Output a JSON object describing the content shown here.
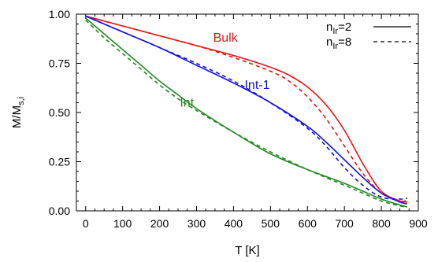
{
  "chart_data": {
    "type": "line",
    "xlabel": "T [K]",
    "ylabel": "M/M",
    "ylabel_sub": "s,i",
    "xlim": [
      -25,
      900
    ],
    "ylim": [
      0,
      1.0
    ],
    "x_ticks": [
      0,
      100,
      200,
      300,
      400,
      500,
      600,
      700,
      800,
      900
    ],
    "x_tick_labels": [
      "0",
      "100",
      "200",
      "300",
      "400",
      "500",
      "600",
      "700",
      "800",
      "900"
    ],
    "y_ticks": [
      0,
      0.25,
      0.5,
      0.75,
      1.0
    ],
    "y_tick_labels": [
      "0.00",
      "0.25",
      "0.50",
      "0.75",
      "1.00"
    ],
    "grid": false,
    "legend": {
      "placement": "top-right",
      "entries": [
        {
          "prefix": "n",
          "sub": "Ir",
          "suffix": "=2",
          "style": "solid"
        },
        {
          "prefix": "n",
          "sub": "Ir",
          "suffix": "=8",
          "style": "dashed"
        }
      ]
    },
    "series": [
      {
        "name": "Bulk",
        "color": "#ee1111",
        "style": "solid",
        "x": [
          0,
          100,
          200,
          300,
          400,
          500,
          550,
          600,
          650,
          700,
          750,
          800,
          850,
          870
        ],
        "y": [
          0.99,
          0.94,
          0.89,
          0.84,
          0.79,
          0.73,
          0.69,
          0.63,
          0.54,
          0.41,
          0.24,
          0.1,
          0.05,
          0.045
        ]
      },
      {
        "name": "Bulk n=8",
        "color": "#ee1111",
        "style": "dashed",
        "x": [
          0,
          100,
          200,
          300,
          400,
          500,
          550,
          600,
          650,
          700,
          750,
          800,
          850,
          870
        ],
        "y": [
          0.99,
          0.94,
          0.89,
          0.84,
          0.78,
          0.71,
          0.66,
          0.58,
          0.47,
          0.33,
          0.19,
          0.09,
          0.05,
          0.055
        ]
      },
      {
        "name": "Int-1",
        "color": "#1111dd",
        "style": "solid",
        "x": [
          0,
          100,
          200,
          300,
          400,
          500,
          600,
          650,
          700,
          750,
          800,
          850,
          870
        ],
        "y": [
          0.99,
          0.91,
          0.83,
          0.74,
          0.65,
          0.55,
          0.43,
          0.35,
          0.26,
          0.17,
          0.09,
          0.045,
          0.035
        ]
      },
      {
        "name": "Int-1 n=8",
        "color": "#1111dd",
        "style": "dashed",
        "x": [
          0,
          100,
          200,
          300,
          400,
          500,
          600,
          650,
          700,
          750,
          800,
          850,
          870
        ],
        "y": [
          0.99,
          0.91,
          0.83,
          0.75,
          0.66,
          0.55,
          0.42,
          0.33,
          0.22,
          0.13,
          0.07,
          0.06,
          0.065
        ]
      },
      {
        "name": "Int",
        "color": "#228822",
        "style": "solid",
        "x": [
          0,
          50,
          100,
          150,
          200,
          250,
          300,
          400,
          500,
          600,
          700,
          750,
          800,
          850,
          870
        ],
        "y": [
          0.98,
          0.9,
          0.82,
          0.74,
          0.66,
          0.59,
          0.52,
          0.4,
          0.29,
          0.21,
          0.14,
          0.1,
          0.06,
          0.03,
          0.02
        ]
      },
      {
        "name": "Int n=8",
        "color": "#228822",
        "style": "dashed",
        "x": [
          0,
          50,
          100,
          150,
          200,
          250,
          300,
          400,
          500,
          600,
          700,
          750,
          800,
          850,
          870
        ],
        "y": [
          0.97,
          0.88,
          0.8,
          0.72,
          0.64,
          0.57,
          0.51,
          0.4,
          0.3,
          0.21,
          0.13,
          0.09,
          0.05,
          0.025,
          0.02
        ]
      }
    ],
    "annotations": [
      {
        "text": "Bulk",
        "color": "#ee1111",
        "x": 345,
        "y": 0.86
      },
      {
        "text": "Int-1",
        "color": "#1111dd",
        "x": 430,
        "y": 0.62
      },
      {
        "text": "Int",
        "color": "#228822",
        "x": 255,
        "y": 0.53
      }
    ]
  }
}
